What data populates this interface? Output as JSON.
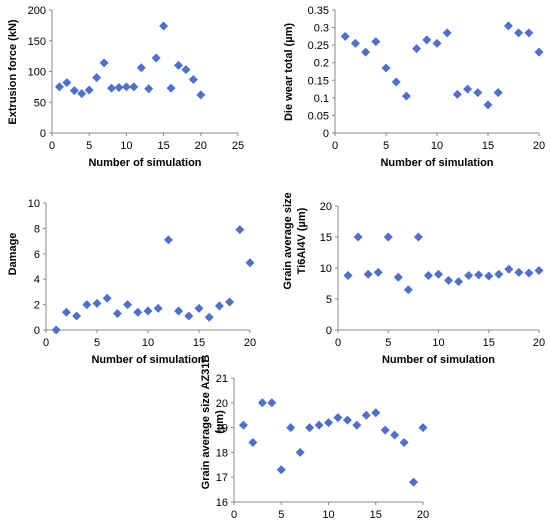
{
  "marker_color": "#4f6fcf",
  "chart_data": [
    {
      "type": "scatter",
      "xlabel": "Number of simulation",
      "ylabel": "Extrusion force (kN)",
      "xlim": [
        0,
        25
      ],
      "ylim": [
        0,
        200
      ],
      "xticks": [
        0,
        5,
        10,
        15,
        20,
        25
      ],
      "yticks": [
        0,
        50,
        100,
        150,
        200
      ],
      "x": [
        1,
        2,
        3,
        4,
        5,
        6,
        7,
        8,
        9,
        10,
        11,
        12,
        13,
        14,
        15,
        16,
        17,
        18,
        19,
        20
      ],
      "y": [
        75,
        82,
        69,
        64,
        70,
        90,
        114,
        73,
        74,
        75,
        75,
        106,
        72,
        122,
        174,
        73,
        110,
        103,
        87,
        62
      ]
    },
    {
      "type": "scatter",
      "xlabel": "Number of simulation",
      "ylabel": "Die wear total (µm)",
      "xlim": [
        0,
        20
      ],
      "ylim": [
        0,
        0.35
      ],
      "xticks": [
        0,
        5,
        10,
        15,
        20
      ],
      "yticks": [
        "0",
        "0.05",
        "0.1",
        "0.15",
        "0.2",
        "0.25",
        "0.3",
        "0.35"
      ],
      "x": [
        1,
        2,
        3,
        4,
        5,
        6,
        7,
        8,
        9,
        10,
        11,
        12,
        13,
        14,
        15,
        16,
        17,
        18,
        19,
        20
      ],
      "y": [
        0.275,
        0.255,
        0.23,
        0.26,
        0.185,
        0.145,
        0.105,
        0.24,
        0.265,
        0.255,
        0.285,
        0.11,
        0.125,
        0.115,
        0.08,
        0.115,
        0.305,
        0.285,
        0.285,
        0.23
      ]
    },
    {
      "type": "scatter",
      "xlabel": "Number of simulation",
      "ylabel": "Damage",
      "xlim": [
        0,
        20
      ],
      "ylim": [
        0,
        10
      ],
      "xticks": [
        0,
        5,
        10,
        15,
        20
      ],
      "yticks": [
        0,
        2,
        4,
        6,
        8,
        10
      ],
      "x": [
        1,
        2,
        3,
        4,
        5,
        6,
        7,
        8,
        9,
        10,
        11,
        12,
        13,
        14,
        15,
        16,
        17,
        18,
        19,
        20
      ],
      "y": [
        0,
        1.4,
        1.1,
        2,
        2.1,
        2.5,
        1.3,
        2,
        1.4,
        1.5,
        1.7,
        7.1,
        1.5,
        1.1,
        1.7,
        1,
        1.9,
        2.2,
        7.9,
        5.3
      ]
    },
    {
      "type": "scatter",
      "xlabel": "Number of simulation",
      "ylabel": [
        "Grain average size",
        "Ti6Al4V (µm)"
      ],
      "xlim": [
        0,
        20
      ],
      "ylim": [
        0,
        20
      ],
      "xticks": [
        0,
        5,
        10,
        15,
        20
      ],
      "yticks": [
        0,
        5,
        10,
        15,
        20
      ],
      "x": [
        1,
        2,
        3,
        4,
        5,
        6,
        7,
        8,
        9,
        10,
        11,
        12,
        13,
        14,
        15,
        16,
        17,
        18,
        19,
        20
      ],
      "y": [
        8.8,
        15,
        9,
        9.3,
        15,
        8.5,
        6.5,
        15,
        8.8,
        9,
        8,
        7.8,
        8.8,
        8.9,
        8.7,
        9,
        9.8,
        9.3,
        9.2,
        9.6
      ]
    },
    {
      "type": "scatter",
      "xlabel": "Number of simulation",
      "ylabel": [
        "Grain average size AZ31B",
        "(µm)"
      ],
      "xlim": [
        0,
        20
      ],
      "ylim": [
        16,
        21
      ],
      "xticks": [
        0,
        5,
        10,
        15,
        20
      ],
      "yticks": [
        16,
        17,
        18,
        19,
        20,
        21
      ],
      "x": [
        1,
        2,
        3,
        4,
        5,
        6,
        7,
        8,
        9,
        10,
        11,
        12,
        13,
        14,
        15,
        16,
        17,
        18,
        19,
        20
      ],
      "y": [
        19.1,
        18.4,
        20,
        20,
        17.3,
        19,
        18,
        19,
        19.1,
        19.2,
        19.4,
        19.3,
        19.1,
        19.5,
        19.6,
        18.9,
        18.7,
        18.4,
        16.8,
        19
      ]
    }
  ]
}
